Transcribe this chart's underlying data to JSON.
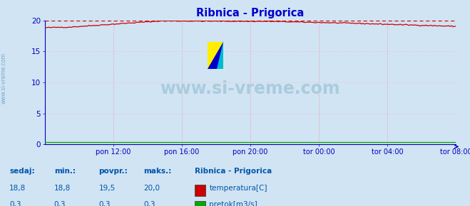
{
  "title": "Ribnica - Prigorica",
  "bg_color": "#d0e4f4",
  "plot_bg_color": "#d0e4f4",
  "grid_color_v": "#ff8888",
  "grid_color_h": "#ffbbbb",
  "axis_color": "#0000bb",
  "title_color": "#0000cc",
  "tick_label_color": "#0000bb",
  "watermark_text": "www.si-vreme.com",
  "watermark_color": "#aaccdd",
  "sidebar_text": "www.si-vreme.com",
  "x_tick_labels": [
    "pon 12:00",
    "pon 16:00",
    "pon 20:00",
    "tor 00:00",
    "tor 04:00",
    "tor 08:00"
  ],
  "x_tick_count": 6,
  "ylim": [
    0,
    20
  ],
  "yticks": [
    0,
    5,
    10,
    15,
    20
  ],
  "ytick_labels": [
    "0",
    "5",
    "10",
    "15",
    "20"
  ],
  "temp_color": "#cc0000",
  "flow_color": "#00aa00",
  "dashed_line_color": "#cc0000",
  "dashed_line_value": 20.0,
  "bottom_label_color": "#0055aa",
  "legend_title": "Ribnica - Prigorica",
  "legend_temp_label": "temperatura[C]",
  "legend_flow_label": "pretok[m3/s]",
  "bottom_stats_labels": [
    "sedaj:",
    "min.:",
    "povpr.:",
    "maks.:"
  ],
  "bottom_stats_temp": [
    "18,8",
    "18,8",
    "19,5",
    "20,0"
  ],
  "bottom_stats_flow": [
    "0,3",
    "0,3",
    "0,3",
    "0,3"
  ],
  "logo_yellow": "#ffee00",
  "logo_blue": "#0000cc",
  "logo_cyan": "#00bbcc"
}
